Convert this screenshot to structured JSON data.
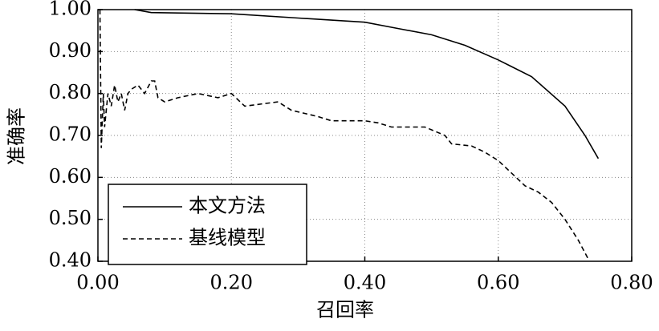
{
  "chart_data": {
    "type": "line",
    "xlabel": "召回率",
    "ylabel": "准确率",
    "xlim": [
      0,
      0.8
    ],
    "ylim": [
      0.4,
      1.0
    ],
    "xticks": [
      {
        "value": 0,
        "label": "0.00"
      },
      {
        "value": 0.2,
        "label": "0.20"
      },
      {
        "value": 0.4,
        "label": "0.40"
      },
      {
        "value": 0.6,
        "label": "0.60"
      },
      {
        "value": 0.8,
        "label": "0.80"
      }
    ],
    "yticks": [
      {
        "value": 0.4,
        "label": "0.40"
      },
      {
        "value": 0.5,
        "label": "0.50"
      },
      {
        "value": 0.6,
        "label": "0.60"
      },
      {
        "value": 0.7,
        "label": "0.70"
      },
      {
        "value": 0.8,
        "label": "0.80"
      },
      {
        "value": 0.9,
        "label": "0.90"
      },
      {
        "value": 1.0,
        "label": "1.00"
      }
    ],
    "grid": true,
    "legend": "lower left",
    "series": [
      {
        "name": "本文方法",
        "color": "#000000",
        "linestyle": "solid",
        "x": [
          0.055,
          0.08,
          0.2,
          0.3,
          0.4,
          0.45,
          0.5,
          0.55,
          0.6,
          0.65,
          0.7,
          0.73,
          0.75
        ],
        "values": [
          1.0,
          0.993,
          0.99,
          0.98,
          0.97,
          0.955,
          0.94,
          0.915,
          0.88,
          0.84,
          0.77,
          0.7,
          0.645
        ]
      },
      {
        "name": "基线模型",
        "color": "#000000",
        "linestyle": "dashed",
        "x": [
          0.003,
          0.005,
          0.008,
          0.01,
          0.015,
          0.02,
          0.025,
          0.03,
          0.035,
          0.04,
          0.045,
          0.05,
          0.06,
          0.07,
          0.08,
          0.085,
          0.09,
          0.1,
          0.12,
          0.15,
          0.18,
          0.2,
          0.22,
          0.27,
          0.29,
          0.33,
          0.35,
          0.4,
          0.42,
          0.44,
          0.49,
          0.52,
          0.53,
          0.56,
          0.58,
          0.6,
          0.62,
          0.64,
          0.66,
          0.68,
          0.7,
          0.72,
          0.735
        ],
        "values": [
          1.0,
          0.67,
          0.8,
          0.72,
          0.8,
          0.77,
          0.82,
          0.78,
          0.8,
          0.76,
          0.8,
          0.81,
          0.82,
          0.8,
          0.83,
          0.83,
          0.79,
          0.78,
          0.79,
          0.8,
          0.79,
          0.8,
          0.77,
          0.78,
          0.76,
          0.745,
          0.735,
          0.735,
          0.73,
          0.72,
          0.72,
          0.7,
          0.68,
          0.675,
          0.66,
          0.64,
          0.61,
          0.58,
          0.565,
          0.54,
          0.5,
          0.45,
          0.405
        ]
      }
    ]
  }
}
